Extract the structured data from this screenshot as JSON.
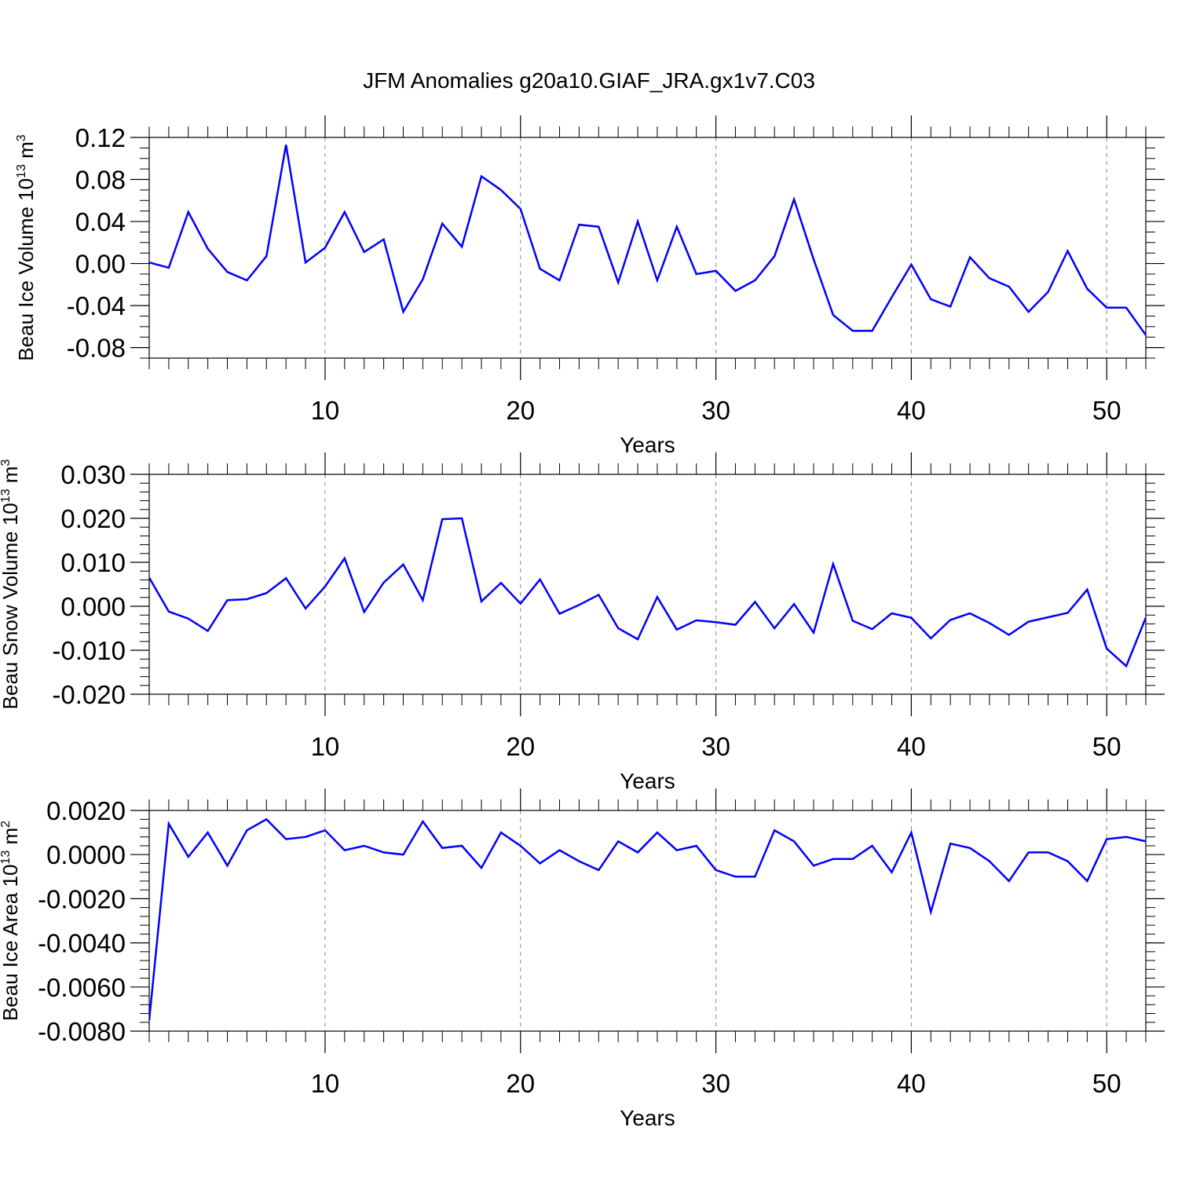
{
  "title": "JFM Anomalies g20a10.GIAF_JRA.gx1v7.C03",
  "line_color": "#0000ff",
  "chart_data": [
    {
      "type": "line",
      "ylabel_prefix": "Beau Ice Volume 10",
      "ylabel_sup": "13",
      "ylabel_suffix": " m",
      "ylabel_sup2": "3",
      "xlabel": "Years",
      "xlim": [
        1,
        52
      ],
      "ylim": [
        -0.09,
        0.12
      ],
      "x_ticks": [
        10,
        20,
        30,
        40,
        50
      ],
      "x_tick_labels": [
        "10",
        "20",
        "30",
        "40",
        "50"
      ],
      "y_ticks": [
        -0.08,
        -0.04,
        0.0,
        0.04,
        0.08,
        0.12
      ],
      "y_tick_labels": [
        "-0.08",
        "-0.04",
        "0.00",
        "0.04",
        "0.08",
        "0.12"
      ],
      "y_minor_step": 0.01,
      "grid_x": "dashed at major x ticks",
      "series": [
        {
          "name": "Beau Ice Volume",
          "values": [
            0.001,
            -0.004,
            0.049,
            0.014,
            -0.008,
            -0.016,
            0.007,
            0.113,
            0.001,
            0.015,
            0.049,
            0.011,
            0.023,
            -0.046,
            -0.015,
            0.038,
            0.016,
            0.083,
            0.07,
            0.052,
            -0.005,
            -0.016,
            0.037,
            0.035,
            -0.018,
            0.04,
            -0.016,
            0.035,
            -0.01,
            -0.007,
            -0.026,
            -0.016,
            0.007,
            0.061,
            0.004,
            -0.049,
            -0.064,
            -0.064,
            -0.032,
            -0.001,
            -0.034,
            -0.041,
            0.006,
            -0.014,
            -0.022,
            -0.046,
            -0.027,
            0.012,
            -0.024,
            -0.042,
            -0.042,
            -0.068
          ]
        }
      ]
    },
    {
      "type": "line",
      "ylabel_prefix": "Beau Snow Volume 10",
      "ylabel_sup": "13",
      "ylabel_suffix": " m",
      "ylabel_sup2": "3",
      "xlabel": "Years",
      "xlim": [
        1,
        52
      ],
      "ylim": [
        -0.02,
        0.03
      ],
      "x_ticks": [
        10,
        20,
        30,
        40,
        50
      ],
      "x_tick_labels": [
        "10",
        "20",
        "30",
        "40",
        "50"
      ],
      "y_ticks": [
        -0.02,
        -0.01,
        0.0,
        0.01,
        0.02,
        0.03
      ],
      "y_tick_labels": [
        "-0.020",
        "-0.010",
        "0.000",
        "0.010",
        "0.020",
        "0.030"
      ],
      "y_minor_step": 0.002,
      "grid_x": "dashed at major x ticks",
      "series": [
        {
          "name": "Beau Snow Volume",
          "values": [
            0.0065,
            -0.0012,
            -0.0028,
            -0.0056,
            0.0014,
            0.0016,
            0.003,
            0.0064,
            -0.0005,
            0.0045,
            0.0109,
            -0.0013,
            0.0054,
            0.0095,
            0.0014,
            0.0198,
            0.02,
            0.0011,
            0.0053,
            0.0006,
            0.0061,
            -0.0017,
            0.0003,
            0.0026,
            -0.005,
            -0.0075,
            0.0021,
            -0.0053,
            -0.0032,
            -0.0036,
            -0.0042,
            0.001,
            -0.005,
            0.0005,
            -0.006,
            0.0096,
            -0.0033,
            -0.0052,
            -0.0016,
            -0.0026,
            -0.0073,
            -0.0031,
            -0.0016,
            -0.0038,
            -0.0065,
            -0.0035,
            -0.0025,
            -0.0015,
            0.0038,
            -0.0096,
            -0.0136,
            -0.0026
          ]
        }
      ]
    },
    {
      "type": "line",
      "ylabel_prefix": "Beau Ice Area 10",
      "ylabel_sup": "13",
      "ylabel_suffix": " m",
      "ylabel_sup2": "2",
      "xlabel": "Years",
      "xlim": [
        1,
        52
      ],
      "ylim": [
        -0.008,
        0.002
      ],
      "x_ticks": [
        10,
        20,
        30,
        40,
        50
      ],
      "x_tick_labels": [
        "10",
        "20",
        "30",
        "40",
        "50"
      ],
      "y_ticks": [
        -0.008,
        -0.006,
        -0.004,
        -0.002,
        0.0,
        0.002
      ],
      "y_tick_labels": [
        "-0.0080",
        "-0.0060",
        "-0.0040",
        "-0.0020",
        "0.0000",
        "0.0020"
      ],
      "y_minor_step": 0.0004,
      "grid_x": "dashed at major x ticks",
      "series": [
        {
          "name": "Beau Ice Area",
          "values": [
            -0.0075,
            0.0014,
            -0.0001,
            0.001,
            -0.0005,
            0.0011,
            0.0016,
            0.0007,
            0.0008,
            0.0011,
            0.0002,
            0.0004,
            0.0001,
            0.0,
            0.0015,
            0.0003,
            0.0004,
            -0.0006,
            0.001,
            0.0004,
            -0.0004,
            0.0002,
            -0.0003,
            -0.0007,
            0.0006,
            0.0001,
            0.001,
            0.0002,
            0.0004,
            -0.0007,
            -0.001,
            -0.001,
            0.0011,
            0.0006,
            -0.0005,
            -0.0002,
            -0.0002,
            0.0004,
            -0.0008,
            0.001,
            -0.0026,
            0.0005,
            0.0003,
            -0.0003,
            -0.0012,
            0.0001,
            0.0001,
            -0.0003,
            -0.0012,
            0.0007,
            0.0008,
            0.0006
          ]
        }
      ]
    }
  ]
}
